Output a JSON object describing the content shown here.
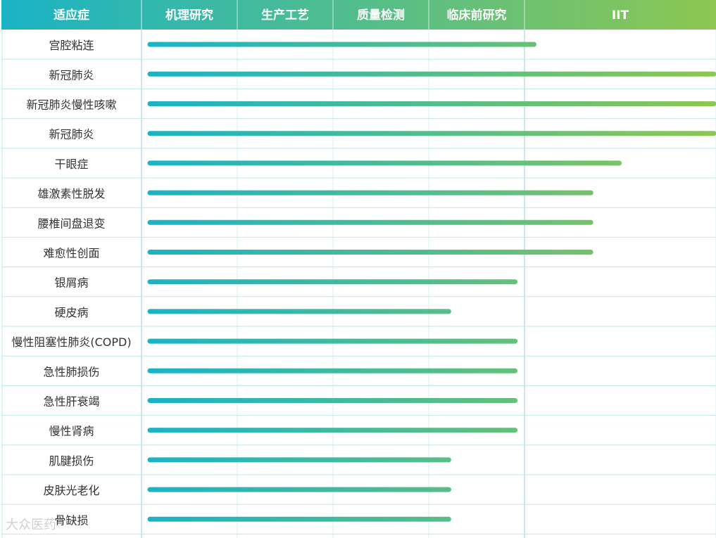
{
  "chart_data": {
    "type": "bar",
    "orientation": "horizontal",
    "header": {
      "label_column": "适应症",
      "stages": [
        "机理研究",
        "生产工艺",
        "质量检测",
        "临床前研究",
        "IIT"
      ]
    },
    "categories": [
      "宫腔粘连",
      "新冠肺炎",
      "新冠肺炎慢性咳嗽",
      "新冠肺炎",
      "干眼症",
      "雄激素性脱发",
      "腰椎间盘退变",
      "难愈性创面",
      "银屑病",
      "硬皮病",
      "慢性阻塞性肺炎(COPD)",
      "急性肺损伤",
      "急性肝衰竭",
      "慢性肾病",
      "肌腱损伤",
      "皮肤光老化",
      "骨缺损"
    ],
    "values": [
      4.1,
      6.0,
      6.0,
      6.0,
      5.0,
      4.7,
      4.7,
      4.7,
      3.9,
      3.2,
      3.9,
      3.9,
      3.9,
      3.9,
      3.2,
      3.2,
      3.2
    ],
    "value_unit": "stage progress (each stage = 1; IIT column spans 2)",
    "xlim": [
      0,
      6
    ],
    "grid": true,
    "legend": "none",
    "colors": {
      "gradient_start": "#1ab3c6",
      "gradient_end": "#8cc751",
      "grid": "#a9dfe5",
      "row_border": "#bfe6ea"
    }
  },
  "watermark": "大众医药"
}
